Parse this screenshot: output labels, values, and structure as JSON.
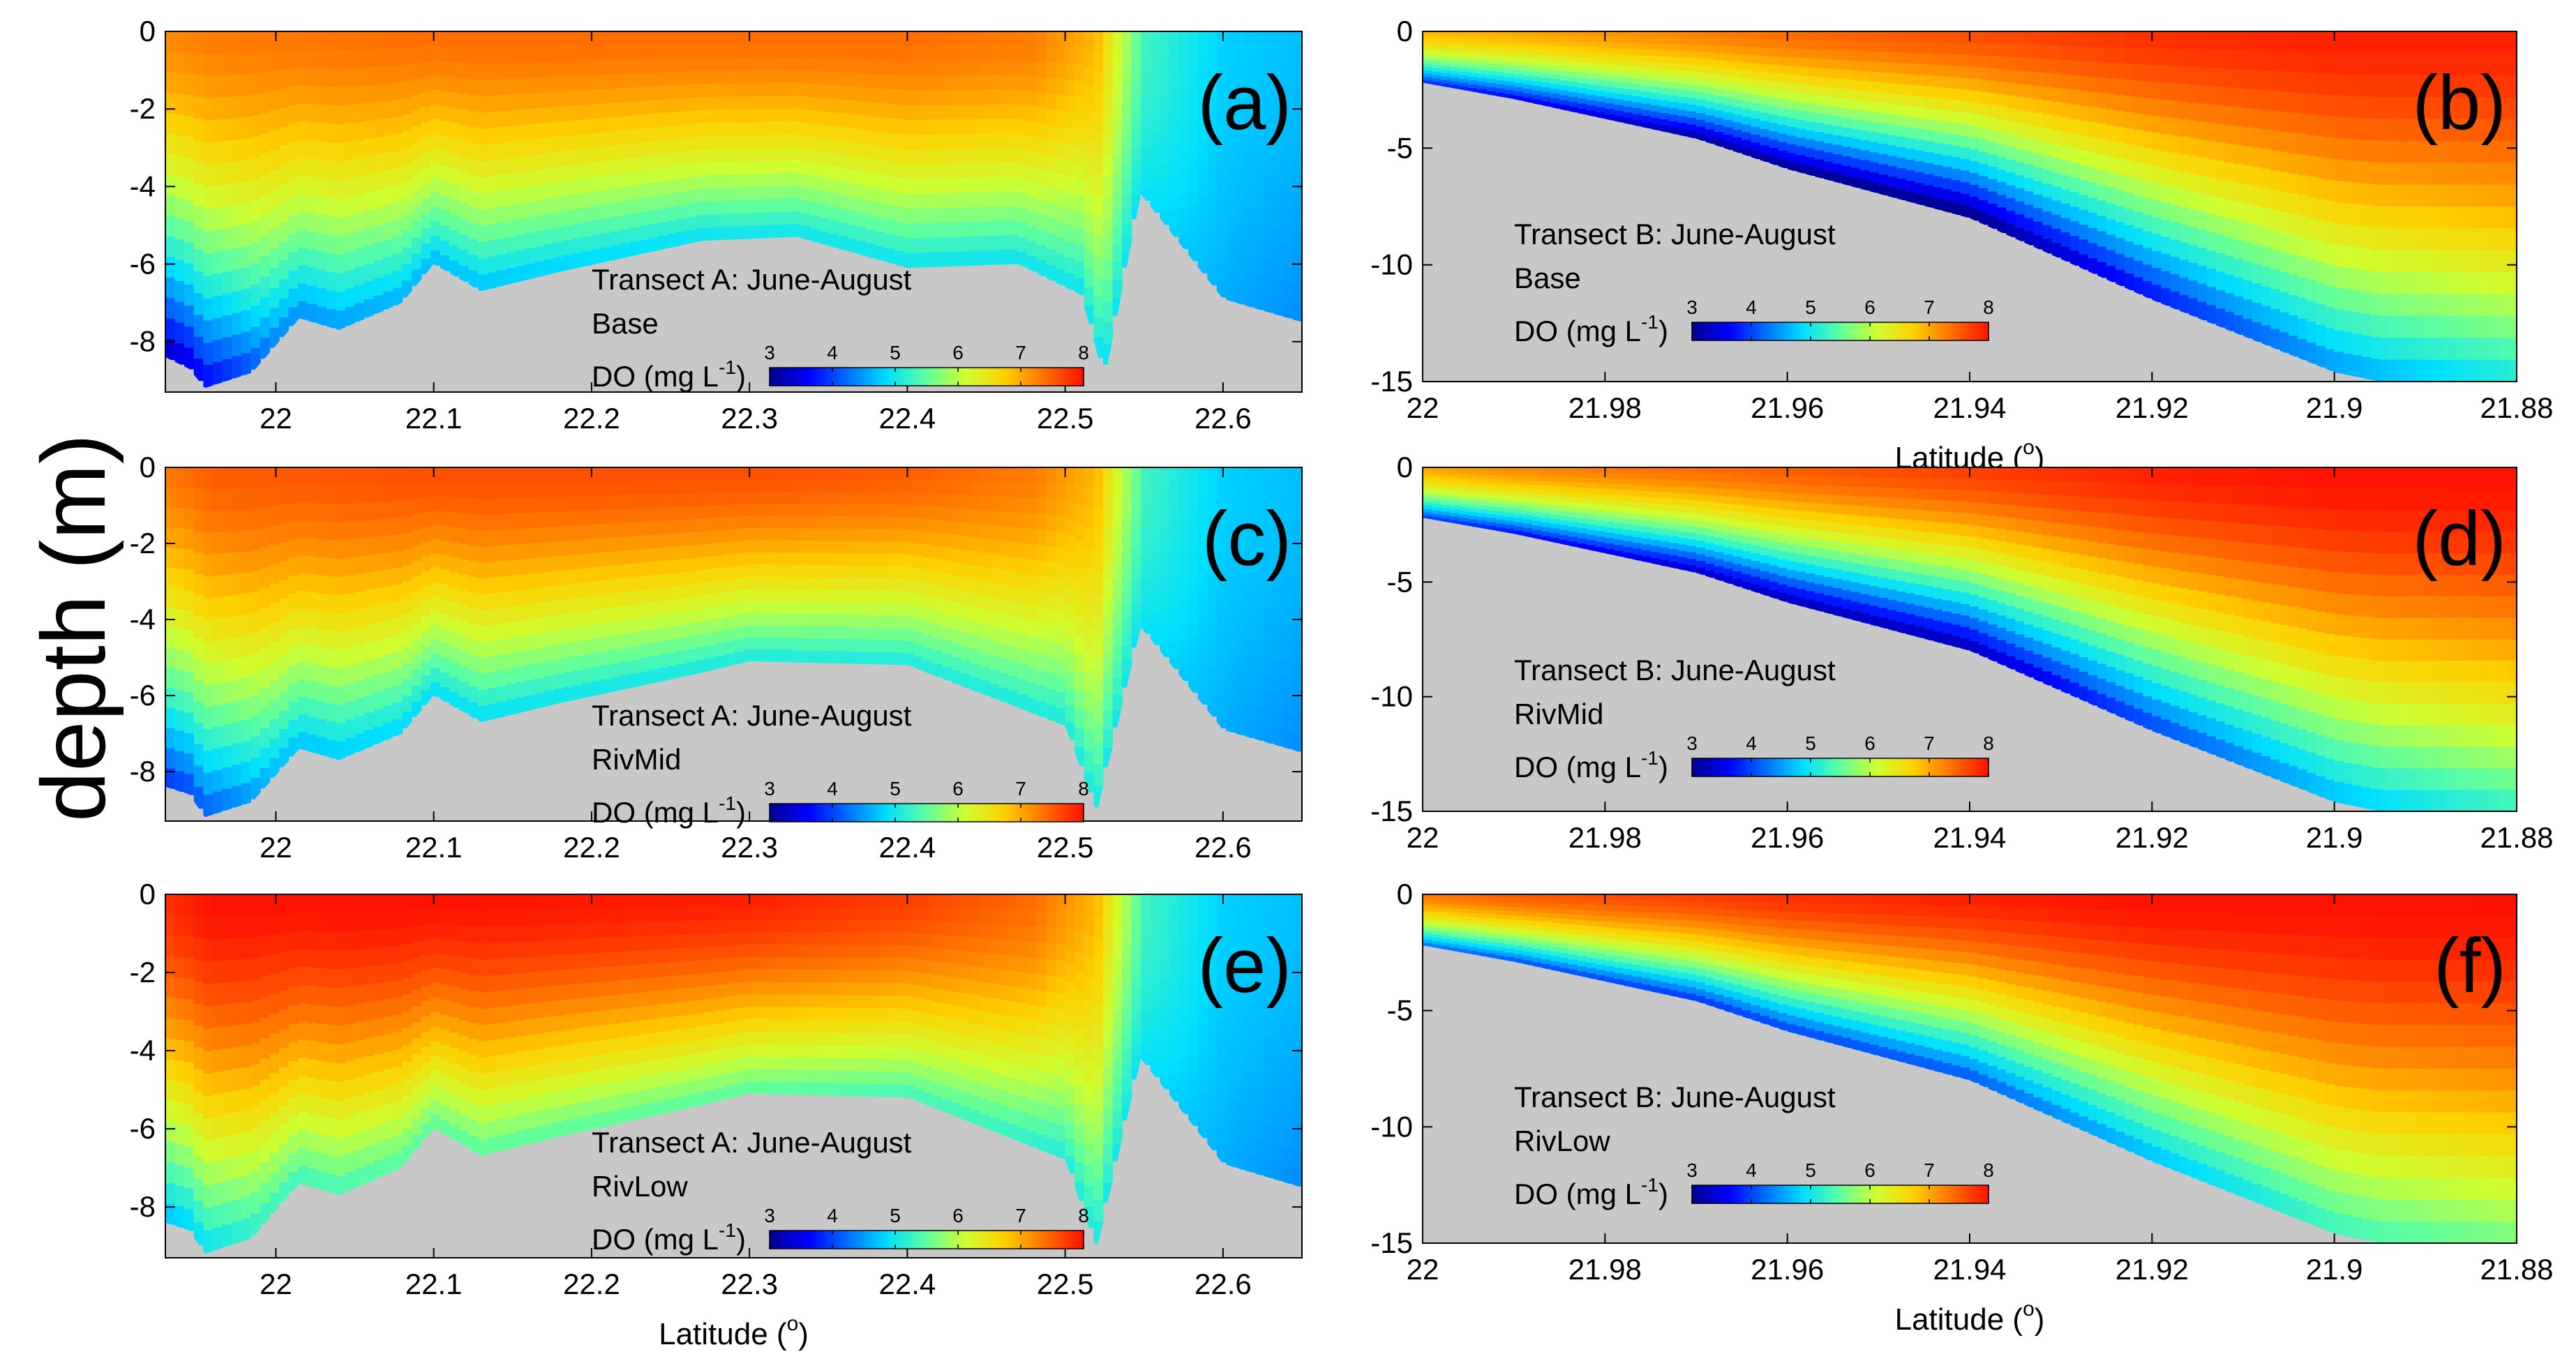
{
  "figure": {
    "shared_ylabel": "depth (m)",
    "colormap": [
      "#00008f",
      "#0000ff",
      "#0070ff",
      "#00dfff",
      "#60ff9f",
      "#cfff30",
      "#ffcf00",
      "#ff7000",
      "#ff1000"
    ],
    "land_color": "#c8c8c8"
  },
  "chart_data": [
    {
      "id": "a",
      "type": "heatmap",
      "panel_label": "(a)",
      "title": "Transect A: June-August",
      "scenario": "Base",
      "xlabel": "",
      "ylabel": "",
      "xlim": [
        21.93,
        22.65
      ],
      "ylim": [
        -9.3,
        0
      ],
      "xticks": [
        22,
        22.1,
        22.2,
        22.3,
        22.4,
        22.5,
        22.6
      ],
      "xtick_labels": [
        "22",
        "22.1",
        "22.2",
        "22.3",
        "22.4",
        "22.5",
        "22.6"
      ],
      "yticks": [
        0,
        -2,
        -4,
        -6,
        -8
      ],
      "ytick_labels": [
        "0",
        "-2",
        "-4",
        "-6",
        "-8"
      ],
      "colorbar": {
        "label": "DO (mg L",
        "label_sup": "-1",
        "label_end": ")",
        "ticks": [
          "3",
          "4",
          "5",
          "6",
          "7",
          "8"
        ],
        "range": [
          3,
          8
        ]
      },
      "bottom_profile": [
        [
          21.93,
          -8.4
        ],
        [
          21.945,
          -8.7
        ],
        [
          21.955,
          -9.2
        ],
        [
          21.985,
          -8.8
        ],
        [
          22.015,
          -7.4
        ],
        [
          22.04,
          -7.7
        ],
        [
          22.08,
          -7.0
        ],
        [
          22.1,
          -6.0
        ],
        [
          22.13,
          -6.7
        ],
        [
          22.18,
          -6.2
        ],
        [
          22.27,
          -5.4
        ],
        [
          22.33,
          -5.3
        ],
        [
          22.4,
          -6.1
        ],
        [
          22.47,
          -6.0
        ],
        [
          22.51,
          -6.8
        ],
        [
          22.525,
          -9.0
        ],
        [
          22.548,
          -4.2
        ],
        [
          22.6,
          -6.9
        ],
        [
          22.65,
          -7.5
        ]
      ],
      "do_surface": [
        [
          21.93,
          7.2
        ],
        [
          21.96,
          7.3
        ],
        [
          22.1,
          7.4
        ],
        [
          22.3,
          7.4
        ],
        [
          22.4,
          7.4
        ],
        [
          22.48,
          7.3
        ],
        [
          22.52,
          6.9
        ],
        [
          22.55,
          5.3
        ],
        [
          22.6,
          4.8
        ],
        [
          22.65,
          4.7
        ]
      ],
      "do_bottom": [
        [
          21.93,
          3.2
        ],
        [
          21.96,
          3.6
        ],
        [
          22.0,
          4.3
        ],
        [
          22.1,
          4.6
        ],
        [
          22.3,
          4.9
        ],
        [
          22.45,
          4.9
        ],
        [
          22.52,
          4.9
        ],
        [
          22.55,
          4.9
        ],
        [
          22.6,
          4.6
        ],
        [
          22.65,
          4.4
        ]
      ]
    },
    {
      "id": "b",
      "type": "heatmap",
      "panel_label": "(b)",
      "title": "Transect B: June-August",
      "scenario": "Base",
      "xlabel": "Latitude (",
      "xlabel_sup": "o",
      "xlabel_end": ")",
      "ylabel": "",
      "xlim": [
        22.0,
        21.88
      ],
      "ylim": [
        -15,
        0
      ],
      "xticks": [
        22,
        21.98,
        21.96,
        21.94,
        21.92,
        21.9,
        21.88
      ],
      "xtick_labels": [
        "22",
        "21.98",
        "21.96",
        "21.94",
        "21.92",
        "21.9",
        "21.88"
      ],
      "yticks": [
        0,
        -5,
        -10,
        -15
      ],
      "ytick_labels": [
        "0",
        "-5",
        "-10",
        "-15"
      ],
      "colorbar": {
        "label": "DO (mg L",
        "label_sup": "-1",
        "label_end": ")",
        "ticks": [
          "3",
          "4",
          "5",
          "6",
          "7",
          "8"
        ],
        "range": [
          3,
          8
        ]
      },
      "bottom_profile": [
        [
          22.0,
          -2.2
        ],
        [
          21.99,
          -2.9
        ],
        [
          21.97,
          -4.6
        ],
        [
          21.96,
          -5.9
        ],
        [
          21.94,
          -8.0
        ],
        [
          21.92,
          -11.5
        ],
        [
          21.9,
          -14.6
        ],
        [
          21.895,
          -15.0
        ]
      ],
      "do_surface": [
        [
          22.0,
          6.9
        ],
        [
          21.99,
          7.0
        ],
        [
          21.96,
          7.4
        ],
        [
          21.94,
          7.6
        ],
        [
          21.92,
          7.8
        ],
        [
          21.9,
          7.9
        ],
        [
          21.88,
          7.9
        ]
      ],
      "do_bottom": [
        [
          22.0,
          3.8
        ],
        [
          21.99,
          3.5
        ],
        [
          21.97,
          3.0
        ],
        [
          21.96,
          2.9
        ],
        [
          21.94,
          2.8
        ],
        [
          21.92,
          3.6
        ],
        [
          21.9,
          4.4
        ],
        [
          21.88,
          5.0
        ]
      ]
    },
    {
      "id": "c",
      "type": "heatmap",
      "panel_label": "(c)",
      "title": "Transect A: June-August",
      "scenario": "RivMid",
      "xlabel": "",
      "ylabel": "",
      "xlim": [
        21.93,
        22.65
      ],
      "ylim": [
        -9.3,
        0
      ],
      "xticks": [
        22,
        22.1,
        22.2,
        22.3,
        22.4,
        22.5,
        22.6
      ],
      "xtick_labels": [
        "22",
        "22.1",
        "22.2",
        "22.3",
        "22.4",
        "22.5",
        "22.6"
      ],
      "yticks": [
        0,
        -2,
        -4,
        -6,
        -8
      ],
      "ytick_labels": [
        "0",
        "-2",
        "-4",
        "-6",
        "-8"
      ],
      "colorbar": {
        "label": "DO (mg L",
        "label_sup": "-1",
        "label_end": ")",
        "ticks": [
          "3",
          "4",
          "5",
          "6",
          "7",
          "8"
        ],
        "range": [
          3,
          8
        ]
      },
      "bottom_profile": [
        [
          21.93,
          -8.4
        ],
        [
          21.945,
          -8.6
        ],
        [
          21.955,
          -9.2
        ],
        [
          21.985,
          -8.8
        ],
        [
          22.015,
          -7.4
        ],
        [
          22.04,
          -7.7
        ],
        [
          22.08,
          -7.0
        ],
        [
          22.1,
          -6.0
        ],
        [
          22.13,
          -6.7
        ],
        [
          22.18,
          -6.2
        ],
        [
          22.27,
          -5.4
        ],
        [
          22.3,
          -5.1
        ],
        [
          22.4,
          -5.2
        ],
        [
          22.45,
          -6.0
        ],
        [
          22.5,
          -6.8
        ],
        [
          22.52,
          -9.1
        ],
        [
          22.548,
          -4.2
        ],
        [
          22.6,
          -6.9
        ],
        [
          22.65,
          -7.5
        ]
      ],
      "do_surface": [
        [
          21.93,
          7.3
        ],
        [
          21.96,
          7.5
        ],
        [
          22.1,
          7.6
        ],
        [
          22.3,
          7.6
        ],
        [
          22.4,
          7.5
        ],
        [
          22.48,
          7.3
        ],
        [
          22.52,
          6.9
        ],
        [
          22.55,
          5.3
        ],
        [
          22.6,
          4.8
        ],
        [
          22.65,
          4.7
        ]
      ],
      "do_bottom": [
        [
          21.93,
          3.8
        ],
        [
          21.96,
          4.1
        ],
        [
          22.0,
          4.6
        ],
        [
          22.1,
          4.8
        ],
        [
          22.3,
          5.0
        ],
        [
          22.45,
          5.0
        ],
        [
          22.52,
          5.0
        ],
        [
          22.55,
          4.9
        ],
        [
          22.6,
          4.6
        ],
        [
          22.65,
          4.4
        ]
      ]
    },
    {
      "id": "d",
      "type": "heatmap",
      "panel_label": "(d)",
      "title": "Transect B: June-August",
      "scenario": "RivMid",
      "xlabel": "",
      "ylabel": "",
      "xlim": [
        22.0,
        21.88
      ],
      "ylim": [
        -15,
        0
      ],
      "xticks": [
        22,
        21.98,
        21.96,
        21.94,
        21.92,
        21.9,
        21.88
      ],
      "xtick_labels": [
        "22",
        "21.98",
        "21.96",
        "21.94",
        "21.92",
        "21.9",
        "21.88"
      ],
      "yticks": [
        0,
        -5,
        -10,
        -15
      ],
      "ytick_labels": [
        "0",
        "-5",
        "-10",
        "-15"
      ],
      "colorbar": {
        "label": "DO (mg L",
        "label_sup": "-1",
        "label_end": ")",
        "ticks": [
          "3",
          "4",
          "5",
          "6",
          "7",
          "8"
        ],
        "range": [
          3,
          8
        ]
      },
      "bottom_profile": [
        [
          22.0,
          -2.2
        ],
        [
          21.99,
          -2.9
        ],
        [
          21.97,
          -4.6
        ],
        [
          21.96,
          -5.9
        ],
        [
          21.94,
          -8.0
        ],
        [
          21.92,
          -11.5
        ],
        [
          21.9,
          -14.6
        ],
        [
          21.895,
          -15.0
        ]
      ],
      "do_surface": [
        [
          22.0,
          7.0
        ],
        [
          21.99,
          7.2
        ],
        [
          21.96,
          7.5
        ],
        [
          21.94,
          7.7
        ],
        [
          21.92,
          7.9
        ],
        [
          21.9,
          8.0
        ],
        [
          21.88,
          8.0
        ]
      ],
      "do_bottom": [
        [
          22.0,
          3.9
        ],
        [
          21.99,
          3.6
        ],
        [
          21.97,
          3.2
        ],
        [
          21.96,
          3.1
        ],
        [
          21.94,
          3.1
        ],
        [
          21.92,
          3.9
        ],
        [
          21.9,
          4.6
        ],
        [
          21.88,
          5.2
        ]
      ]
    },
    {
      "id": "e",
      "type": "heatmap",
      "panel_label": "(e)",
      "title": "Transect A: June-August",
      "scenario": "RivLow",
      "xlabel": "Latitude (",
      "xlabel_sup": "o",
      "xlabel_end": ")",
      "ylabel": "",
      "xlim": [
        21.93,
        22.65
      ],
      "ylim": [
        -9.3,
        0
      ],
      "xticks": [
        22,
        22.1,
        22.2,
        22.3,
        22.4,
        22.5,
        22.6
      ],
      "xtick_labels": [
        "22",
        "22.1",
        "22.2",
        "22.3",
        "22.4",
        "22.5",
        "22.6"
      ],
      "yticks": [
        0,
        -2,
        -4,
        -6,
        -8
      ],
      "ytick_labels": [
        "0",
        "-2",
        "-4",
        "-6",
        "-8"
      ],
      "colorbar": {
        "label": "DO (mg L",
        "label_sup": "-1",
        "label_end": ")",
        "ticks": [
          "3",
          "4",
          "5",
          "6",
          "7",
          "8"
        ],
        "range": [
          3,
          8
        ]
      },
      "bottom_profile": [
        [
          21.93,
          -8.4
        ],
        [
          21.945,
          -8.6
        ],
        [
          21.955,
          -9.2
        ],
        [
          21.985,
          -8.8
        ],
        [
          22.015,
          -7.4
        ],
        [
          22.04,
          -7.7
        ],
        [
          22.08,
          -7.0
        ],
        [
          22.1,
          -6.0
        ],
        [
          22.13,
          -6.7
        ],
        [
          22.18,
          -6.2
        ],
        [
          22.27,
          -5.4
        ],
        [
          22.3,
          -5.1
        ],
        [
          22.4,
          -5.2
        ],
        [
          22.45,
          -6.0
        ],
        [
          22.5,
          -6.8
        ],
        [
          22.52,
          -9.1
        ],
        [
          22.548,
          -4.2
        ],
        [
          22.6,
          -6.9
        ],
        [
          22.65,
          -7.5
        ]
      ],
      "do_surface": [
        [
          21.93,
          7.8
        ],
        [
          21.96,
          8.0
        ],
        [
          22.1,
          8.0
        ],
        [
          22.3,
          7.9
        ],
        [
          22.4,
          7.7
        ],
        [
          22.48,
          7.4
        ],
        [
          22.52,
          6.9
        ],
        [
          22.55,
          5.3
        ],
        [
          22.6,
          4.8
        ],
        [
          22.65,
          4.7
        ]
      ],
      "do_bottom": [
        [
          21.93,
          4.6
        ],
        [
          21.96,
          4.9
        ],
        [
          22.0,
          5.2
        ],
        [
          22.1,
          5.4
        ],
        [
          22.3,
          5.4
        ],
        [
          22.45,
          5.2
        ],
        [
          22.52,
          5.0
        ],
        [
          22.55,
          4.9
        ],
        [
          22.6,
          4.6
        ],
        [
          22.65,
          4.4
        ]
      ]
    },
    {
      "id": "f",
      "type": "heatmap",
      "panel_label": "(f)",
      "title": "Transect B: June-August",
      "scenario": "RivLow",
      "xlabel": "Latitude (",
      "xlabel_sup": "o",
      "xlabel_end": ")",
      "ylabel": "",
      "xlim": [
        22.0,
        21.88
      ],
      "ylim": [
        -15,
        0
      ],
      "xticks": [
        22,
        21.98,
        21.96,
        21.94,
        21.92,
        21.9,
        21.88
      ],
      "xtick_labels": [
        "22",
        "21.98",
        "21.96",
        "21.94",
        "21.92",
        "21.9",
        "21.88"
      ],
      "yticks": [
        0,
        -5,
        -10,
        -15
      ],
      "ytick_labels": [
        "0",
        "-5",
        "-10",
        "-15"
      ],
      "colorbar": {
        "label": "DO (mg L",
        "label_sup": "-1",
        "label_end": ")",
        "ticks": [
          "3",
          "4",
          "5",
          "6",
          "7",
          "8"
        ],
        "range": [
          3,
          8
        ]
      },
      "bottom_profile": [
        [
          22.0,
          -2.2
        ],
        [
          21.99,
          -2.9
        ],
        [
          21.97,
          -4.6
        ],
        [
          21.96,
          -5.9
        ],
        [
          21.94,
          -8.0
        ],
        [
          21.92,
          -11.5
        ],
        [
          21.9,
          -14.6
        ],
        [
          21.895,
          -15.0
        ]
      ],
      "do_surface": [
        [
          22.0,
          7.3
        ],
        [
          21.99,
          7.5
        ],
        [
          21.96,
          7.8
        ],
        [
          21.94,
          7.9
        ],
        [
          21.92,
          8.0
        ],
        [
          21.9,
          8.0
        ],
        [
          21.88,
          8.0
        ]
      ],
      "do_bottom": [
        [
          22.0,
          4.2
        ],
        [
          21.99,
          4.0
        ],
        [
          21.97,
          3.8
        ],
        [
          21.96,
          3.9
        ],
        [
          21.94,
          4.0
        ],
        [
          21.92,
          4.6
        ],
        [
          21.9,
          5.2
        ],
        [
          21.88,
          5.6
        ]
      ]
    }
  ]
}
